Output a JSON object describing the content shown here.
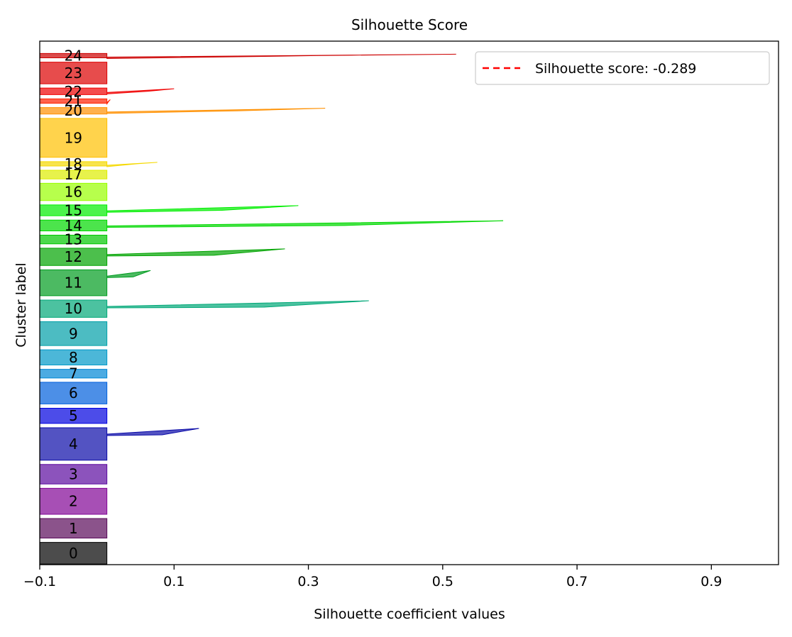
{
  "chart_data": {
    "type": "silhouette",
    "title": "Silhouette Score",
    "xlabel": "Silhouette coefficient values",
    "ylabel": "Cluster label",
    "xlim": [
      -0.1,
      1.0
    ],
    "xticks": [
      -0.1,
      0.1,
      0.3,
      0.5,
      0.7,
      0.9
    ],
    "xtick_labels": [
      "−0.1",
      "0.1",
      "0.3",
      "0.5",
      "0.7",
      "0.9"
    ],
    "grid": false,
    "legend_position": "top-right",
    "average_line": {
      "value": -0.289,
      "label": "Silhouette score: -0.289",
      "color": "#ff0000",
      "style": "dashed"
    },
    "clusters": [
      {
        "label": "0",
        "color": "#000000",
        "samples": 10,
        "max_value": 0.0,
        "min_value": -0.1
      },
      {
        "label": "1",
        "color": "#5a0a5a",
        "samples": 9,
        "max_value": 0.0,
        "min_value": -0.1
      },
      {
        "label": "2",
        "color": "#820496",
        "samples": 12,
        "max_value": 0.0,
        "min_value": -0.1
      },
      {
        "label": "3",
        "color": "#5b0aa0",
        "samples": 9,
        "max_value": 0.0,
        "min_value": -0.1
      },
      {
        "label": "4",
        "color": "#0a0aa8",
        "samples": 15,
        "max_value": 0.137,
        "min_value": -0.1
      },
      {
        "label": "5",
        "color": "#0000e0",
        "samples": 7,
        "max_value": 0.0,
        "min_value": -0.1
      },
      {
        "label": "6",
        "color": "#0060dd",
        "samples": 10,
        "max_value": 0.0,
        "min_value": -0.1
      },
      {
        "label": "7",
        "color": "#0088d5",
        "samples": 4,
        "max_value": 0.0,
        "min_value": -0.1
      },
      {
        "label": "8",
        "color": "#0099c8",
        "samples": 7,
        "max_value": 0.0,
        "min_value": -0.1
      },
      {
        "label": "9",
        "color": "#00a0a8",
        "samples": 11,
        "max_value": 0.0,
        "min_value": -0.1
      },
      {
        "label": "10",
        "color": "#00a878",
        "samples": 8,
        "max_value": 0.39,
        "min_value": -0.1
      },
      {
        "label": "11",
        "color": "#009c20",
        "samples": 12,
        "max_value": 0.065,
        "min_value": -0.1
      },
      {
        "label": "12",
        "color": "#00a400",
        "samples": 8,
        "max_value": 0.265,
        "min_value": -0.1
      },
      {
        "label": "13",
        "color": "#00c800",
        "samples": 4,
        "max_value": 0.0,
        "min_value": -0.1
      },
      {
        "label": "14",
        "color": "#00d800",
        "samples": 5,
        "max_value": 0.59,
        "min_value": -0.1
      },
      {
        "label": "15",
        "color": "#00ee00",
        "samples": 5,
        "max_value": 0.285,
        "min_value": -0.1
      },
      {
        "label": "16",
        "color": "#99ff00",
        "samples": 8,
        "max_value": 0.0,
        "min_value": -0.1
      },
      {
        "label": "17",
        "color": "#dded00",
        "samples": 4,
        "max_value": 0.0,
        "min_value": -0.1
      },
      {
        "label": "18",
        "color": "#f5d900",
        "samples": 2,
        "max_value": 0.075,
        "min_value": -0.1
      },
      {
        "label": "19",
        "color": "#ffc000",
        "samples": 18,
        "max_value": 0.0,
        "min_value": -0.1
      },
      {
        "label": "20",
        "color": "#ff9000",
        "samples": 3,
        "max_value": 0.325,
        "min_value": -0.1
      },
      {
        "label": "21",
        "color": "#ff2000",
        "samples": 2,
        "max_value": 0.005,
        "min_value": -0.1
      },
      {
        "label": "22",
        "color": "#f00000",
        "samples": 3,
        "max_value": 0.1,
        "min_value": -0.1
      },
      {
        "label": "23",
        "color": "#dd0000",
        "samples": 10,
        "max_value": 0.0,
        "min_value": -0.1
      },
      {
        "label": "24",
        "color": "#cc0000",
        "samples": 2,
        "max_value": 0.52,
        "min_value": -0.1
      }
    ]
  }
}
